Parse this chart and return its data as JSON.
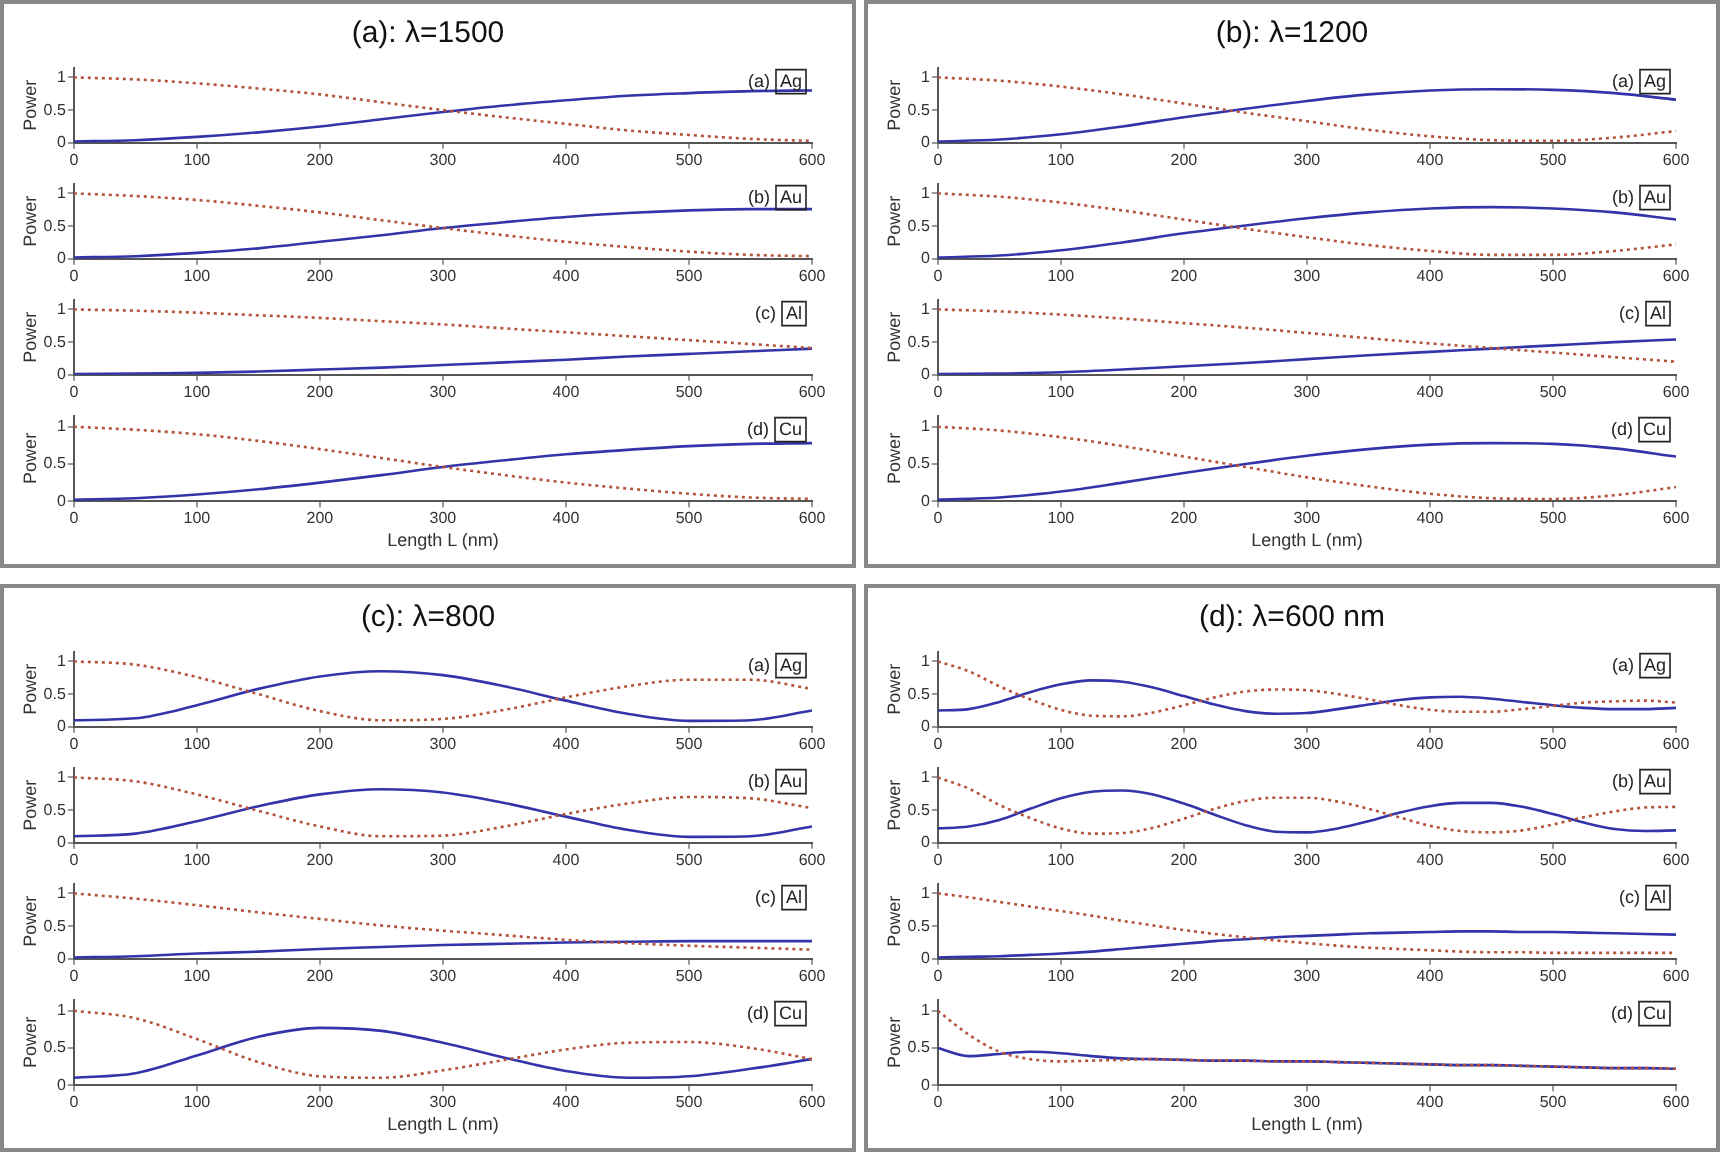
{
  "chart_data": [
    {
      "type": "line",
      "title": "(a): λ=1500",
      "ylabel": "Power",
      "annotations": [
        "(a)",
        "Ag"
      ],
      "x": [
        0,
        50,
        100,
        150,
        200,
        250,
        300,
        350,
        400,
        450,
        500,
        550,
        600
      ],
      "xlim": [
        0,
        600
      ],
      "xticks": [
        0,
        100,
        200,
        300,
        400,
        500,
        600
      ],
      "ylim": [
        0,
        1.15
      ],
      "yticks": [
        0,
        0.5,
        1
      ],
      "grid": false,
      "series": [
        {
          "color": "#3333aa",
          "line_style": "solid",
          "values": [
            0.02,
            0.04,
            0.09,
            0.16,
            0.25,
            0.36,
            0.47,
            0.57,
            0.65,
            0.72,
            0.76,
            0.79,
            0.8
          ]
        },
        {
          "color": "#b5523b",
          "line_style": "dotted",
          "values": [
            1.0,
            0.97,
            0.91,
            0.83,
            0.74,
            0.62,
            0.5,
            0.39,
            0.29,
            0.19,
            0.12,
            0.06,
            0.03
          ]
        }
      ]
    },
    {
      "type": "line",
      "ylabel": "Power",
      "annotations": [
        "(b)",
        "Au"
      ],
      "x": [
        0,
        50,
        100,
        150,
        200,
        250,
        300,
        350,
        400,
        450,
        500,
        550,
        600
      ],
      "xlim": [
        0,
        600
      ],
      "xticks": [
        0,
        100,
        200,
        300,
        400,
        500,
        600
      ],
      "ylim": [
        0,
        1.15
      ],
      "yticks": [
        0,
        0.5,
        1
      ],
      "grid": false,
      "series": [
        {
          "color": "#3333aa",
          "line_style": "solid",
          "values": [
            0.02,
            0.04,
            0.09,
            0.16,
            0.26,
            0.36,
            0.47,
            0.56,
            0.64,
            0.7,
            0.74,
            0.76,
            0.76
          ]
        },
        {
          "color": "#b5523b",
          "line_style": "dotted",
          "values": [
            1.0,
            0.96,
            0.9,
            0.81,
            0.71,
            0.59,
            0.47,
            0.36,
            0.26,
            0.18,
            0.11,
            0.06,
            0.04
          ]
        }
      ]
    },
    {
      "type": "line",
      "ylabel": "Power",
      "annotations": [
        "(c)",
        "Al"
      ],
      "x": [
        0,
        50,
        100,
        150,
        200,
        250,
        300,
        350,
        400,
        450,
        500,
        550,
        600
      ],
      "xlim": [
        0,
        600
      ],
      "xticks": [
        0,
        100,
        200,
        300,
        400,
        500,
        600
      ],
      "ylim": [
        0,
        1.15
      ],
      "yticks": [
        0,
        0.5,
        1
      ],
      "grid": false,
      "series": [
        {
          "color": "#3333aa",
          "line_style": "solid",
          "values": [
            0.01,
            0.02,
            0.03,
            0.05,
            0.08,
            0.11,
            0.15,
            0.19,
            0.23,
            0.28,
            0.32,
            0.36,
            0.4
          ]
        },
        {
          "color": "#b5523b",
          "line_style": "dotted",
          "values": [
            1.0,
            0.98,
            0.95,
            0.91,
            0.87,
            0.82,
            0.77,
            0.71,
            0.65,
            0.59,
            0.53,
            0.47,
            0.41
          ]
        }
      ]
    },
    {
      "type": "line",
      "ylabel": "Power",
      "xlabel": "Length L (nm)",
      "annotations": [
        "(d)",
        "Cu"
      ],
      "x": [
        0,
        50,
        100,
        150,
        200,
        250,
        300,
        350,
        400,
        450,
        500,
        550,
        600
      ],
      "xlim": [
        0,
        600
      ],
      "xticks": [
        0,
        100,
        200,
        300,
        400,
        500,
        600
      ],
      "ylim": [
        0,
        1.15
      ],
      "yticks": [
        0,
        0.5,
        1
      ],
      "grid": false,
      "series": [
        {
          "color": "#3333aa",
          "line_style": "solid",
          "values": [
            0.02,
            0.04,
            0.09,
            0.16,
            0.25,
            0.35,
            0.46,
            0.55,
            0.63,
            0.69,
            0.74,
            0.77,
            0.78
          ]
        },
        {
          "color": "#b5523b",
          "line_style": "dotted",
          "values": [
            1.0,
            0.96,
            0.9,
            0.81,
            0.7,
            0.58,
            0.46,
            0.35,
            0.25,
            0.17,
            0.1,
            0.05,
            0.03
          ]
        }
      ]
    },
    {
      "type": "line",
      "title": "(b): λ=1200",
      "ylabel": "Power",
      "annotations": [
        "(a)",
        "Ag"
      ],
      "x": [
        0,
        50,
        100,
        150,
        200,
        250,
        300,
        350,
        400,
        450,
        500,
        550,
        600
      ],
      "xlim": [
        0,
        600
      ],
      "xticks": [
        0,
        100,
        200,
        300,
        400,
        500,
        600
      ],
      "ylim": [
        0,
        1.15
      ],
      "yticks": [
        0,
        0.5,
        1
      ],
      "grid": false,
      "series": [
        {
          "color": "#3333aa",
          "line_style": "solid",
          "values": [
            0.02,
            0.05,
            0.13,
            0.25,
            0.39,
            0.52,
            0.64,
            0.74,
            0.8,
            0.82,
            0.81,
            0.76,
            0.66
          ]
        },
        {
          "color": "#b5523b",
          "line_style": "dotted",
          "values": [
            1.0,
            0.95,
            0.86,
            0.74,
            0.6,
            0.46,
            0.33,
            0.2,
            0.1,
            0.04,
            0.03,
            0.08,
            0.18
          ]
        }
      ]
    },
    {
      "type": "line",
      "ylabel": "Power",
      "annotations": [
        "(b)",
        "Au"
      ],
      "x": [
        0,
        50,
        100,
        150,
        200,
        250,
        300,
        350,
        400,
        450,
        500,
        550,
        600
      ],
      "xlim": [
        0,
        600
      ],
      "xticks": [
        0,
        100,
        200,
        300,
        400,
        500,
        600
      ],
      "ylim": [
        0,
        1.15
      ],
      "yticks": [
        0,
        0.5,
        1
      ],
      "grid": false,
      "series": [
        {
          "color": "#3333aa",
          "line_style": "solid",
          "values": [
            0.02,
            0.05,
            0.13,
            0.25,
            0.39,
            0.51,
            0.62,
            0.71,
            0.77,
            0.79,
            0.77,
            0.71,
            0.6
          ]
        },
        {
          "color": "#b5523b",
          "line_style": "dotted",
          "values": [
            1.0,
            0.95,
            0.86,
            0.74,
            0.6,
            0.46,
            0.33,
            0.21,
            0.12,
            0.06,
            0.06,
            0.12,
            0.22
          ]
        }
      ]
    },
    {
      "type": "line",
      "ylabel": "Power",
      "annotations": [
        "(c)",
        "Al"
      ],
      "x": [
        0,
        50,
        100,
        150,
        200,
        250,
        300,
        350,
        400,
        450,
        500,
        550,
        600
      ],
      "xlim": [
        0,
        600
      ],
      "xticks": [
        0,
        100,
        200,
        300,
        400,
        500,
        600
      ],
      "ylim": [
        0,
        1.15
      ],
      "yticks": [
        0,
        0.5,
        1
      ],
      "grid": false,
      "series": [
        {
          "color": "#3333aa",
          "line_style": "solid",
          "values": [
            0.01,
            0.02,
            0.04,
            0.08,
            0.13,
            0.18,
            0.24,
            0.3,
            0.35,
            0.4,
            0.45,
            0.5,
            0.54
          ]
        },
        {
          "color": "#b5523b",
          "line_style": "dotted",
          "values": [
            1.0,
            0.97,
            0.92,
            0.86,
            0.79,
            0.72,
            0.64,
            0.56,
            0.48,
            0.41,
            0.34,
            0.27,
            0.2
          ]
        }
      ]
    },
    {
      "type": "line",
      "ylabel": "Power",
      "xlabel": "Length L (nm)",
      "annotations": [
        "(d)",
        "Cu"
      ],
      "x": [
        0,
        50,
        100,
        150,
        200,
        250,
        300,
        350,
        400,
        450,
        500,
        550,
        600
      ],
      "xlim": [
        0,
        600
      ],
      "xticks": [
        0,
        100,
        200,
        300,
        400,
        500,
        600
      ],
      "ylim": [
        0,
        1.15
      ],
      "yticks": [
        0,
        0.5,
        1
      ],
      "grid": false,
      "series": [
        {
          "color": "#3333aa",
          "line_style": "solid",
          "values": [
            0.02,
            0.05,
            0.13,
            0.25,
            0.38,
            0.5,
            0.61,
            0.7,
            0.76,
            0.78,
            0.77,
            0.71,
            0.6
          ]
        },
        {
          "color": "#b5523b",
          "line_style": "dotted",
          "values": [
            1.0,
            0.95,
            0.86,
            0.74,
            0.6,
            0.46,
            0.32,
            0.2,
            0.1,
            0.04,
            0.03,
            0.08,
            0.19
          ]
        }
      ]
    },
    {
      "type": "line",
      "title": "(c): λ=800",
      "ylabel": "Power",
      "annotations": [
        "(a)",
        "Ag"
      ],
      "x": [
        0,
        50,
        100,
        150,
        200,
        250,
        300,
        350,
        400,
        450,
        500,
        550,
        600
      ],
      "xlim": [
        0,
        600
      ],
      "xticks": [
        0,
        100,
        200,
        300,
        400,
        500,
        600
      ],
      "ylim": [
        0,
        1.15
      ],
      "yticks": [
        0,
        0.5,
        1
      ],
      "grid": false,
      "series": [
        {
          "color": "#3333aa",
          "line_style": "solid",
          "values": [
            0.1,
            0.13,
            0.33,
            0.58,
            0.77,
            0.85,
            0.79,
            0.62,
            0.4,
            0.2,
            0.09,
            0.1,
            0.25
          ]
        },
        {
          "color": "#b5523b",
          "line_style": "dotted",
          "values": [
            1.0,
            0.95,
            0.76,
            0.5,
            0.24,
            0.1,
            0.12,
            0.26,
            0.45,
            0.62,
            0.72,
            0.72,
            0.58
          ]
        }
      ]
    },
    {
      "type": "line",
      "ylabel": "Power",
      "annotations": [
        "(b)",
        "Au"
      ],
      "x": [
        0,
        50,
        100,
        150,
        200,
        250,
        300,
        350,
        400,
        450,
        500,
        550,
        600
      ],
      "xlim": [
        0,
        600
      ],
      "xticks": [
        0,
        100,
        200,
        300,
        400,
        500,
        600
      ],
      "ylim": [
        0,
        1.15
      ],
      "yticks": [
        0,
        0.5,
        1
      ],
      "grid": false,
      "series": [
        {
          "color": "#3333aa",
          "line_style": "solid",
          "values": [
            0.1,
            0.14,
            0.33,
            0.56,
            0.74,
            0.82,
            0.77,
            0.61,
            0.4,
            0.2,
            0.09,
            0.1,
            0.25
          ]
        },
        {
          "color": "#b5523b",
          "line_style": "dotted",
          "values": [
            1.0,
            0.94,
            0.74,
            0.49,
            0.25,
            0.1,
            0.11,
            0.25,
            0.44,
            0.6,
            0.7,
            0.68,
            0.53
          ]
        }
      ]
    },
    {
      "type": "line",
      "ylabel": "Power",
      "annotations": [
        "(c)",
        "Al"
      ],
      "x": [
        0,
        50,
        100,
        150,
        200,
        250,
        300,
        350,
        400,
        450,
        500,
        550,
        600
      ],
      "xlim": [
        0,
        600
      ],
      "xticks": [
        0,
        100,
        200,
        300,
        400,
        500,
        600
      ],
      "ylim": [
        0,
        1.15
      ],
      "yticks": [
        0,
        0.5,
        1
      ],
      "grid": false,
      "series": [
        {
          "color": "#3333aa",
          "line_style": "solid",
          "values": [
            0.02,
            0.04,
            0.08,
            0.11,
            0.15,
            0.18,
            0.21,
            0.23,
            0.25,
            0.26,
            0.27,
            0.27,
            0.27
          ]
        },
        {
          "color": "#b5523b",
          "line_style": "dotted",
          "values": [
            1.0,
            0.92,
            0.82,
            0.71,
            0.61,
            0.51,
            0.43,
            0.36,
            0.29,
            0.24,
            0.2,
            0.17,
            0.14
          ]
        }
      ]
    },
    {
      "type": "line",
      "ylabel": "Power",
      "xlabel": "Length L (nm)",
      "annotations": [
        "(d)",
        "Cu"
      ],
      "x": [
        0,
        50,
        100,
        150,
        200,
        250,
        300,
        350,
        400,
        450,
        500,
        550,
        600
      ],
      "xlim": [
        0,
        600
      ],
      "xticks": [
        0,
        100,
        200,
        300,
        400,
        500,
        600
      ],
      "ylim": [
        0,
        1.15
      ],
      "yticks": [
        0,
        0.5,
        1
      ],
      "grid": false,
      "series": [
        {
          "color": "#3333aa",
          "line_style": "solid",
          "values": [
            0.1,
            0.16,
            0.4,
            0.65,
            0.77,
            0.73,
            0.57,
            0.37,
            0.19,
            0.1,
            0.12,
            0.22,
            0.35
          ]
        },
        {
          "color": "#b5523b",
          "line_style": "dotted",
          "values": [
            1.0,
            0.9,
            0.62,
            0.31,
            0.12,
            0.1,
            0.2,
            0.34,
            0.48,
            0.57,
            0.58,
            0.5,
            0.35
          ]
        }
      ]
    },
    {
      "type": "line",
      "title": "(d): λ=600 nm",
      "ylabel": "Power",
      "annotations": [
        "(a)",
        "Ag"
      ],
      "x": [
        0,
        25,
        50,
        75,
        100,
        125,
        150,
        175,
        200,
        225,
        250,
        275,
        300,
        325,
        350,
        375,
        400,
        425,
        450,
        475,
        500,
        525,
        550,
        575,
        600
      ],
      "xlim": [
        0,
        600
      ],
      "xticks": [
        0,
        100,
        200,
        300,
        400,
        500,
        600
      ],
      "ylim": [
        0,
        1.15
      ],
      "yticks": [
        0,
        0.5,
        1
      ],
      "grid": false,
      "series": [
        {
          "color": "#3333aa",
          "line_style": "solid",
          "values": [
            0.25,
            0.27,
            0.38,
            0.53,
            0.65,
            0.71,
            0.69,
            0.6,
            0.47,
            0.34,
            0.24,
            0.2,
            0.21,
            0.27,
            0.34,
            0.41,
            0.45,
            0.46,
            0.43,
            0.38,
            0.33,
            0.29,
            0.27,
            0.27,
            0.29
          ]
        },
        {
          "color": "#b5523b",
          "line_style": "dotted",
          "values": [
            1.0,
            0.85,
            0.62,
            0.42,
            0.26,
            0.17,
            0.16,
            0.22,
            0.33,
            0.45,
            0.54,
            0.57,
            0.56,
            0.5,
            0.42,
            0.33,
            0.26,
            0.23,
            0.23,
            0.27,
            0.32,
            0.37,
            0.39,
            0.4,
            0.37
          ]
        }
      ]
    },
    {
      "type": "line",
      "ylabel": "Power",
      "annotations": [
        "(b)",
        "Au"
      ],
      "x": [
        0,
        25,
        50,
        75,
        100,
        125,
        150,
        175,
        200,
        225,
        250,
        275,
        300,
        325,
        350,
        375,
        400,
        425,
        450,
        475,
        500,
        525,
        550,
        575,
        600
      ],
      "xlim": [
        0,
        600
      ],
      "xticks": [
        0,
        100,
        200,
        300,
        400,
        500,
        600
      ],
      "ylim": [
        0,
        1.15
      ],
      "yticks": [
        0,
        0.5,
        1
      ],
      "grid": false,
      "series": [
        {
          "color": "#3333aa",
          "line_style": "solid",
          "values": [
            0.22,
            0.25,
            0.35,
            0.52,
            0.68,
            0.78,
            0.8,
            0.74,
            0.6,
            0.43,
            0.27,
            0.17,
            0.16,
            0.22,
            0.33,
            0.46,
            0.56,
            0.61,
            0.61,
            0.55,
            0.44,
            0.31,
            0.21,
            0.18,
            0.19
          ]
        },
        {
          "color": "#b5523b",
          "line_style": "dotted",
          "values": [
            1.0,
            0.83,
            0.58,
            0.38,
            0.22,
            0.14,
            0.15,
            0.23,
            0.37,
            0.52,
            0.64,
            0.69,
            0.69,
            0.63,
            0.52,
            0.39,
            0.26,
            0.18,
            0.16,
            0.19,
            0.28,
            0.39,
            0.48,
            0.54,
            0.55
          ]
        }
      ]
    },
    {
      "type": "line",
      "ylabel": "Power",
      "annotations": [
        "(c)",
        "Al"
      ],
      "x": [
        0,
        25,
        50,
        75,
        100,
        125,
        150,
        175,
        200,
        225,
        250,
        275,
        300,
        325,
        350,
        375,
        400,
        425,
        450,
        475,
        500,
        525,
        550,
        575,
        600
      ],
      "xlim": [
        0,
        600
      ],
      "xticks": [
        0,
        100,
        200,
        300,
        400,
        500,
        600
      ],
      "ylim": [
        0,
        1.15
      ],
      "yticks": [
        0,
        0.5,
        1
      ],
      "grid": false,
      "series": [
        {
          "color": "#3333aa",
          "line_style": "solid",
          "values": [
            0.02,
            0.03,
            0.04,
            0.06,
            0.08,
            0.11,
            0.15,
            0.19,
            0.23,
            0.27,
            0.3,
            0.33,
            0.35,
            0.37,
            0.39,
            0.4,
            0.41,
            0.42,
            0.42,
            0.41,
            0.41,
            0.4,
            0.39,
            0.38,
            0.37
          ]
        },
        {
          "color": "#b5523b",
          "line_style": "dotted",
          "values": [
            1.0,
            0.94,
            0.87,
            0.8,
            0.73,
            0.66,
            0.58,
            0.51,
            0.44,
            0.38,
            0.33,
            0.28,
            0.24,
            0.2,
            0.17,
            0.15,
            0.13,
            0.11,
            0.1,
            0.1,
            0.09,
            0.09,
            0.09,
            0.09,
            0.09
          ]
        }
      ]
    },
    {
      "type": "line",
      "ylabel": "Power",
      "xlabel": "Length L (nm)",
      "annotations": [
        "(d)",
        "Cu"
      ],
      "x": [
        0,
        25,
        50,
        75,
        100,
        125,
        150,
        175,
        200,
        225,
        250,
        275,
        300,
        325,
        350,
        375,
        400,
        425,
        450,
        475,
        500,
        525,
        550,
        575,
        600
      ],
      "xlim": [
        0,
        600
      ],
      "xticks": [
        0,
        100,
        200,
        300,
        400,
        500,
        600
      ],
      "ylim": [
        0,
        1.15
      ],
      "yticks": [
        0,
        0.5,
        1
      ],
      "grid": false,
      "series": [
        {
          "color": "#3333aa",
          "line_style": "solid",
          "values": [
            0.5,
            0.39,
            0.42,
            0.45,
            0.43,
            0.39,
            0.36,
            0.35,
            0.34,
            0.33,
            0.33,
            0.32,
            0.32,
            0.31,
            0.3,
            0.29,
            0.28,
            0.27,
            0.27,
            0.26,
            0.25,
            0.24,
            0.23,
            0.23,
            0.22
          ]
        },
        {
          "color": "#b5523b",
          "line_style": "dotted",
          "values": [
            1.0,
            0.68,
            0.45,
            0.35,
            0.32,
            0.33,
            0.34,
            0.35,
            0.34,
            0.33,
            0.33,
            0.32,
            0.32,
            0.31,
            0.3,
            0.29,
            0.28,
            0.27,
            0.27,
            0.26,
            0.25,
            0.24,
            0.23,
            0.23,
            0.22
          ]
        }
      ]
    }
  ]
}
